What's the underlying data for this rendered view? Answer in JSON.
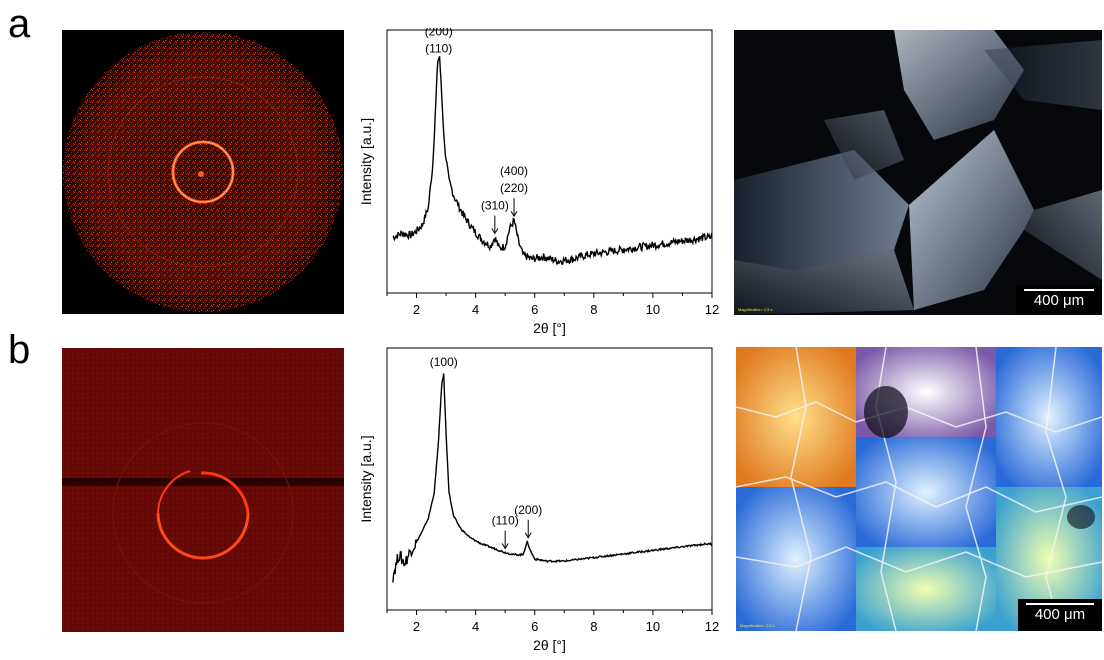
{
  "figure": {
    "panels": [
      {
        "letter": "a",
        "pom_scale_label": "400 μm",
        "pom_magnification": "Magnification: 2,5 x"
      },
      {
        "letter": "b",
        "pom_scale_label": "400 μm",
        "pom_magnification": "Magnification: 2,5 x"
      }
    ]
  },
  "colors": {
    "waxs_ring": "#ff4a1a",
    "waxs_bg_b": "#6b0a06",
    "curve": "#000000"
  },
  "chart_data": [
    {
      "type": "line",
      "xlabel": "2θ [°]",
      "ylabel": "Intensity [a.u.]",
      "xlim": [
        1,
        12
      ],
      "xticks": [
        2,
        4,
        6,
        8,
        10,
        12
      ],
      "yticks_shown": false,
      "series": [
        {
          "x": [
            1.2,
            1.5,
            1.8,
            2.0,
            2.2,
            2.4,
            2.55,
            2.65,
            2.72,
            2.78,
            2.85,
            2.95,
            3.1,
            3.3,
            3.6,
            3.9,
            4.2,
            4.5,
            4.65,
            4.8,
            5.0,
            5.15,
            5.3,
            5.45,
            5.6,
            5.9,
            6.3,
            6.8,
            7.3,
            7.8,
            8.3,
            8.8,
            9.3,
            9.8,
            10.3,
            10.8,
            11.3,
            11.8,
            12.0
          ],
          "y": [
            0.16,
            0.18,
            0.17,
            0.19,
            0.22,
            0.3,
            0.5,
            0.78,
            0.98,
            1.0,
            0.82,
            0.58,
            0.42,
            0.34,
            0.26,
            0.2,
            0.15,
            0.12,
            0.16,
            0.11,
            0.12,
            0.2,
            0.24,
            0.14,
            0.08,
            0.06,
            0.07,
            0.05,
            0.06,
            0.08,
            0.09,
            0.1,
            0.11,
            0.12,
            0.13,
            0.14,
            0.15,
            0.16,
            0.16
          ]
        }
      ],
      "annotations": [
        {
          "label": "(200)\n(110)",
          "x": 2.75
        },
        {
          "label": "(310)",
          "x": 4.65
        },
        {
          "label": "(400)\n(220)",
          "x": 5.3
        }
      ]
    },
    {
      "type": "line",
      "xlabel": "2θ [°]",
      "ylabel": "Intensity [a.u.]",
      "xlim": [
        1,
        12
      ],
      "xticks": [
        2,
        4,
        6,
        8,
        10,
        12
      ],
      "yticks_shown": false,
      "series": [
        {
          "x": [
            1.2,
            1.4,
            1.6,
            1.8,
            2.0,
            2.2,
            2.4,
            2.6,
            2.75,
            2.85,
            2.92,
            3.0,
            3.1,
            3.25,
            3.5,
            3.8,
            4.2,
            4.6,
            5.0,
            5.3,
            5.6,
            5.75,
            5.85,
            6.0,
            6.4,
            7.0,
            7.6,
            8.2,
            8.8,
            9.4,
            10.0,
            10.6,
            11.2,
            11.8,
            12.0
          ],
          "y": [
            0.06,
            0.16,
            0.12,
            0.18,
            0.22,
            0.27,
            0.33,
            0.45,
            0.7,
            0.95,
            1.0,
            0.72,
            0.45,
            0.34,
            0.28,
            0.24,
            0.21,
            0.19,
            0.17,
            0.16,
            0.16,
            0.22,
            0.18,
            0.14,
            0.13,
            0.13,
            0.14,
            0.15,
            0.16,
            0.17,
            0.18,
            0.19,
            0.2,
            0.21,
            0.21
          ]
        }
      ],
      "annotations": [
        {
          "label": "(100)",
          "x": 2.92
        },
        {
          "label": "(110)",
          "x": 5.0
        },
        {
          "label": "(200)",
          "x": 5.78
        }
      ]
    }
  ]
}
